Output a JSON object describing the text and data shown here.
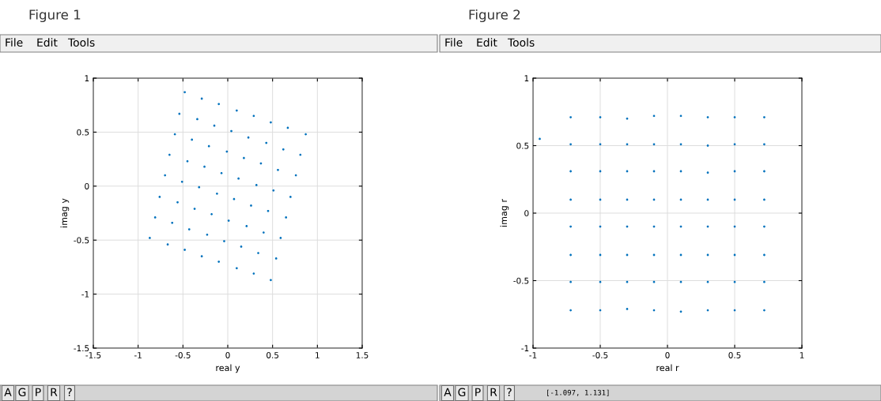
{
  "chart_data": [
    {
      "type": "scatter",
      "title": "Figure 1",
      "xlabel": "real y",
      "ylabel": "imag y",
      "xlim": [
        -1.5,
        1.5
      ],
      "ylim": [
        -1.5,
        1
      ],
      "xticks": [
        -1.5,
        -1,
        -0.5,
        0,
        0.5,
        1,
        1.5
      ],
      "yticks": [
        -1.5,
        -1,
        -0.5,
        0,
        0.5,
        1
      ],
      "grid": true,
      "marker": "circle",
      "annotations": [
        "File",
        "Edit",
        "Tools",
        "A",
        "G",
        "P",
        "R",
        "?"
      ],
      "x": [
        -0.48,
        -0.29,
        -0.1,
        0.1,
        0.29,
        0.48,
        0.67,
        0.87,
        -0.54,
        -0.34,
        -0.15,
        0.04,
        0.23,
        0.43,
        0.62,
        0.81,
        -0.59,
        -0.4,
        -0.21,
        -0.01,
        0.18,
        0.37,
        0.56,
        0.76,
        -0.65,
        -0.45,
        -0.26,
        -0.07,
        0.12,
        0.32,
        0.51,
        0.7,
        -0.7,
        -0.51,
        -0.32,
        -0.12,
        0.07,
        0.26,
        0.45,
        0.65,
        -0.76,
        -0.56,
        -0.37,
        -0.18,
        0.01,
        0.21,
        0.4,
        0.59,
        -0.81,
        -0.62,
        -0.43,
        -0.23,
        -0.04,
        0.15,
        0.34,
        0.54,
        -0.87,
        -0.67,
        -0.48,
        -0.29,
        -0.1,
        0.1,
        0.29,
        0.48
      ],
      "series": [
        {
          "color": "#0072bd",
          "values": [
            0.87,
            0.81,
            0.76,
            0.7,
            0.65,
            0.59,
            0.54,
            0.48,
            0.67,
            0.62,
            0.56,
            0.51,
            0.45,
            0.4,
            0.34,
            0.29,
            0.48,
            0.43,
            0.37,
            0.32,
            0.26,
            0.21,
            0.15,
            0.1,
            0.29,
            0.23,
            0.18,
            0.12,
            0.07,
            0.01,
            -0.04,
            -0.1,
            0.1,
            0.04,
            -0.01,
            -0.07,
            -0.12,
            -0.18,
            -0.23,
            -0.29,
            -0.1,
            -0.15,
            -0.21,
            -0.26,
            -0.32,
            -0.37,
            -0.43,
            -0.48,
            -0.29,
            -0.34,
            -0.4,
            -0.45,
            -0.51,
            -0.56,
            -0.62,
            -0.67,
            -0.48,
            -0.54,
            -0.59,
            -0.65,
            -0.7,
            -0.76,
            -0.81,
            -0.87
          ]
        }
      ]
    },
    {
      "type": "scatter",
      "title": "Figure 2",
      "xlabel": "real r",
      "ylabel": "imag r",
      "xlim": [
        -1,
        1
      ],
      "ylim": [
        -1,
        1
      ],
      "xticks": [
        -1,
        -0.5,
        0,
        0.5,
        1
      ],
      "yticks": [
        -1,
        -0.5,
        0,
        0.5,
        1
      ],
      "grid": true,
      "marker": "circle",
      "annotations": [
        "File",
        "Edit",
        "Tools",
        "A",
        "G",
        "P",
        "R",
        "?",
        "[-1.097, 1.131]"
      ],
      "x": [
        -0.72,
        -0.5,
        -0.3,
        -0.1,
        0.1,
        0.3,
        0.5,
        0.72,
        -0.72,
        -0.5,
        -0.3,
        -0.1,
        0.1,
        0.3,
        0.5,
        0.72,
        -0.72,
        -0.5,
        -0.3,
        -0.1,
        0.1,
        0.3,
        0.5,
        0.72,
        -0.72,
        -0.5,
        -0.3,
        -0.1,
        0.1,
        0.3,
        0.5,
        0.72,
        -0.72,
        -0.5,
        -0.3,
        -0.1,
        0.1,
        0.3,
        0.5,
        0.72,
        -0.72,
        -0.5,
        -0.3,
        -0.1,
        0.1,
        0.3,
        0.5,
        0.72,
        -0.72,
        -0.5,
        -0.3,
        -0.1,
        0.1,
        0.3,
        0.5,
        0.72,
        -0.72,
        -0.5,
        -0.3,
        -0.1,
        0.1,
        0.3,
        0.5,
        0.72,
        -0.95
      ],
      "series": [
        {
          "color": "#0072bd",
          "values": [
            0.71,
            0.71,
            0.7,
            0.72,
            0.72,
            0.71,
            0.71,
            0.71,
            0.51,
            0.51,
            0.51,
            0.51,
            0.51,
            0.5,
            0.51,
            0.51,
            0.31,
            0.31,
            0.31,
            0.31,
            0.31,
            0.3,
            0.31,
            0.31,
            0.1,
            0.1,
            0.1,
            0.1,
            0.1,
            0.1,
            0.1,
            0.1,
            -0.1,
            -0.1,
            -0.1,
            -0.1,
            -0.1,
            -0.1,
            -0.1,
            -0.1,
            -0.31,
            -0.31,
            -0.31,
            -0.31,
            -0.31,
            -0.31,
            -0.31,
            -0.31,
            -0.51,
            -0.51,
            -0.51,
            -0.51,
            -0.51,
            -0.51,
            -0.51,
            -0.51,
            -0.72,
            -0.72,
            -0.71,
            -0.72,
            -0.73,
            -0.72,
            -0.72,
            -0.72,
            0.55
          ]
        }
      ]
    }
  ]
}
